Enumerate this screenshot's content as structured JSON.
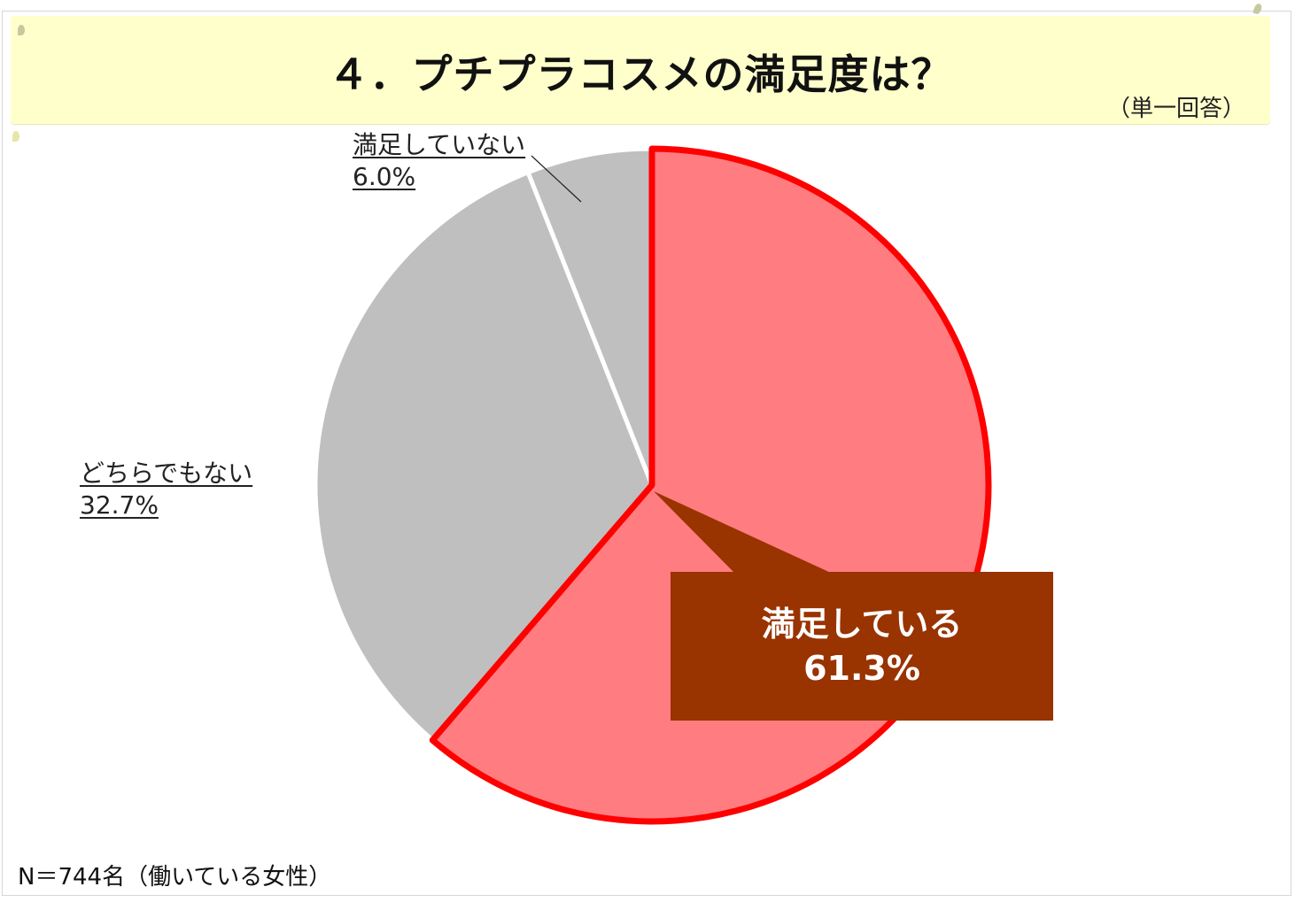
{
  "header": {
    "title": "４．プチプラコスメの満足度は？",
    "subtitle": "（単一回答）"
  },
  "footer": {
    "note": "N＝744名（働いている女性）"
  },
  "chart_data": {
    "type": "pie",
    "title": "４．プチプラコスメの満足度は？",
    "unit": "%",
    "slices": [
      {
        "label": "満足している",
        "value": 61.3,
        "value_label": "61.3%",
        "color": "#ff7c80",
        "highlight_border": "#ff0000"
      },
      {
        "label": "どちらでもない",
        "value": 32.7,
        "value_label": "32.7%",
        "color": "#bfbfbf"
      },
      {
        "label": "満足していない",
        "value": 6.0,
        "value_label": "6.0%",
        "color": "#bfbfbf"
      }
    ],
    "start": "12 o'clock, clockwise",
    "callout_color": "#993300"
  }
}
